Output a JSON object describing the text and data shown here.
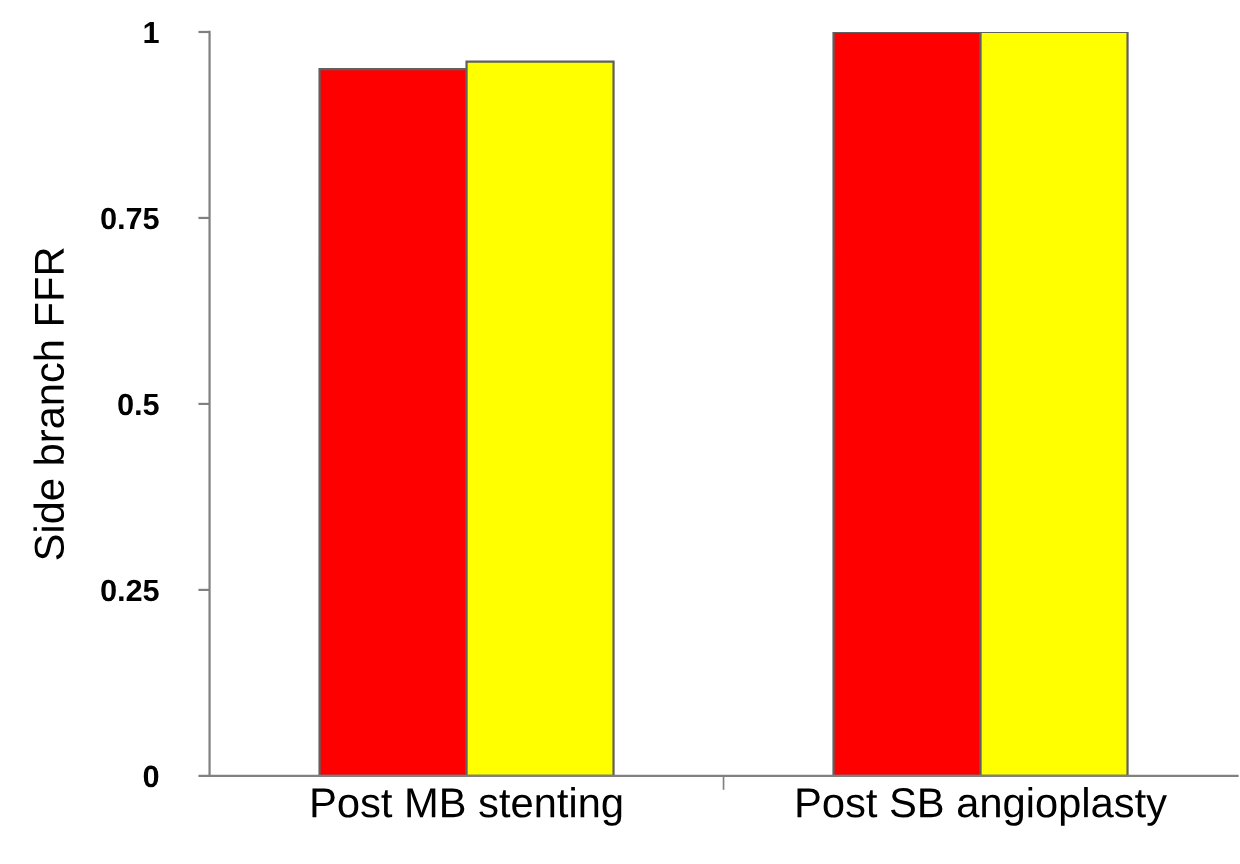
{
  "chart_data": {
    "type": "bar",
    "ylabel": "Side branch FFR",
    "categories": [
      "Post MB stenting",
      "Post SB angioplasty"
    ],
    "series": [
      {
        "color": "#ff0000",
        "values": [
          0.95,
          1.0
        ]
      },
      {
        "color": "#ffff00",
        "values": [
          0.96,
          1.0
        ]
      }
    ],
    "ylim": [
      0,
      1
    ],
    "yticks": [
      0,
      0.25,
      0.5,
      0.75,
      1
    ],
    "grid": false
  }
}
